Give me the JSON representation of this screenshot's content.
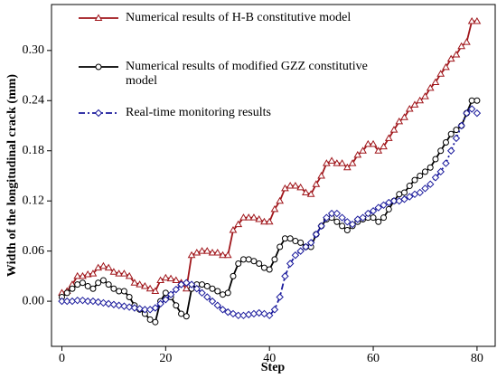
{
  "chart_data": {
    "type": "line",
    "xlabel": "Step",
    "ylabel": "Width of the longitudinal crack (mm)",
    "x": [
      0,
      1,
      2,
      3,
      4,
      5,
      6,
      7,
      8,
      9,
      10,
      11,
      12,
      13,
      14,
      15,
      16,
      17,
      18,
      19,
      20,
      21,
      22,
      23,
      24,
      25,
      26,
      27,
      28,
      29,
      30,
      31,
      32,
      33,
      34,
      35,
      36,
      37,
      38,
      39,
      40,
      41,
      42,
      43,
      44,
      45,
      46,
      47,
      48,
      49,
      50,
      51,
      52,
      53,
      54,
      55,
      56,
      57,
      58,
      59,
      60,
      61,
      62,
      63,
      64,
      65,
      66,
      67,
      68,
      69,
      70,
      71,
      72,
      73,
      74,
      75,
      76,
      77,
      78,
      79,
      80
    ],
    "series": [
      {
        "name": "Numerical results of H-B constitutive model",
        "color": "#a0161b",
        "marker": "triangle",
        "dash": "solid",
        "values": [
          0.01,
          0.012,
          0.02,
          0.03,
          0.03,
          0.032,
          0.033,
          0.04,
          0.042,
          0.04,
          0.035,
          0.033,
          0.033,
          0.03,
          0.022,
          0.02,
          0.018,
          0.015,
          0.012,
          0.025,
          0.028,
          0.027,
          0.025,
          0.022,
          0.015,
          0.055,
          0.058,
          0.06,
          0.06,
          0.058,
          0.058,
          0.055,
          0.055,
          0.085,
          0.092,
          0.1,
          0.1,
          0.1,
          0.098,
          0.095,
          0.095,
          0.11,
          0.12,
          0.135,
          0.138,
          0.138,
          0.136,
          0.13,
          0.128,
          0.14,
          0.15,
          0.165,
          0.168,
          0.165,
          0.165,
          0.16,
          0.165,
          0.175,
          0.18,
          0.188,
          0.188,
          0.18,
          0.185,
          0.195,
          0.205,
          0.215,
          0.22,
          0.23,
          0.235,
          0.24,
          0.245,
          0.255,
          0.262,
          0.272,
          0.28,
          0.29,
          0.295,
          0.305,
          0.31,
          0.335,
          0.335
        ]
      },
      {
        "name": "Numerical results of modified GZZ constitutive model",
        "color": "#000000",
        "marker": "circle",
        "dash": "solid",
        "values": [
          0.005,
          0.01,
          0.015,
          0.02,
          0.022,
          0.018,
          0.015,
          0.022,
          0.025,
          0.02,
          0.015,
          0.012,
          0.012,
          0.005,
          -0.005,
          -0.01,
          -0.015,
          -0.022,
          -0.025,
          0,
          0.01,
          0.005,
          -0.005,
          -0.015,
          -0.018,
          0.015,
          0.02,
          0.02,
          0.018,
          0.015,
          0.012,
          0.008,
          0.01,
          0.03,
          0.045,
          0.05,
          0.05,
          0.048,
          0.045,
          0.04,
          0.038,
          0.05,
          0.065,
          0.075,
          0.075,
          0.072,
          0.07,
          0.065,
          0.065,
          0.08,
          0.09,
          0.098,
          0.1,
          0.095,
          0.09,
          0.085,
          0.09,
          0.095,
          0.098,
          0.1,
          0.1,
          0.095,
          0.1,
          0.11,
          0.12,
          0.128,
          0.13,
          0.138,
          0.145,
          0.15,
          0.155,
          0.16,
          0.17,
          0.18,
          0.19,
          0.2,
          0.205,
          0.21,
          0.225,
          0.24,
          0.24
        ]
      },
      {
        "name": "Real-time monitoring results",
        "color": "#1a1a9c",
        "marker": "diamond",
        "dash": "dashdot",
        "values": [
          0,
          0,
          0,
          0.001,
          0.001,
          0,
          0,
          -0.001,
          -0.002,
          -0.003,
          -0.004,
          -0.005,
          -0.006,
          -0.007,
          -0.008,
          -0.009,
          -0.01,
          -0.01,
          -0.008,
          -0.003,
          0.002,
          0.008,
          0.014,
          0.02,
          0.022,
          0.02,
          0.015,
          0.01,
          0.005,
          0,
          -0.005,
          -0.01,
          -0.013,
          -0.015,
          -0.017,
          -0.017,
          -0.016,
          -0.015,
          -0.014,
          -0.015,
          -0.017,
          -0.01,
          0.005,
          0.03,
          0.045,
          0.055,
          0.06,
          0.065,
          0.07,
          0.08,
          0.09,
          0.1,
          0.105,
          0.105,
          0.1,
          0.095,
          0.092,
          0.098,
          0.1,
          0.105,
          0.108,
          0.112,
          0.115,
          0.118,
          0.12,
          0.12,
          0.122,
          0.125,
          0.128,
          0.13,
          0.135,
          0.14,
          0.148,
          0.155,
          0.165,
          0.18,
          0.195,
          0.21,
          0.225,
          0.23,
          0.225
        ]
      }
    ],
    "xlim": [
      -2,
      83.5
    ],
    "xticks": [
      0,
      20,
      40,
      60,
      80
    ],
    "ylim": [
      -0.054,
      0.355
    ],
    "yticks": [
      {
        "value": 0,
        "label": "0.00"
      },
      0.06,
      0.12,
      0.18,
      0.24,
      {
        "value": 0.3,
        "label": "0.30"
      }
    ],
    "grid": false,
    "legend": "upper left"
  }
}
